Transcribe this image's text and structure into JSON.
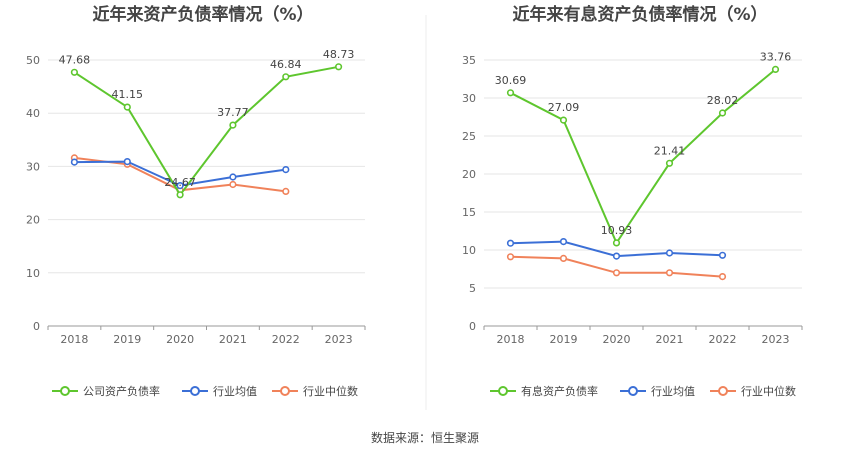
{
  "source": "数据来源：恒生聚源",
  "colors": {
    "primary": "#5ec62e",
    "avg": "#3b6fd6",
    "median": "#f0825a"
  },
  "chart_data": [
    {
      "type": "line",
      "title": "近年来资产负债率情况（%）",
      "categories": [
        "2018",
        "2019",
        "2020",
        "2021",
        "2022",
        "2023"
      ],
      "ylim": [
        0,
        50
      ],
      "yticks": [
        0,
        10,
        20,
        30,
        40,
        50
      ],
      "grid": true,
      "legend": "bottom",
      "series": [
        {
          "name": "公司资产负债率",
          "values": [
            47.68,
            41.15,
            24.67,
            37.77,
            46.84,
            48.73
          ],
          "labels": [
            "47.68",
            "41.15",
            "24.67",
            "37.77",
            "46.84",
            "48.73"
          ]
        },
        {
          "name": "行业均值",
          "values": [
            30.8,
            30.9,
            26.4,
            28.0,
            29.4,
            null
          ]
        },
        {
          "name": "行业中位数",
          "values": [
            31.6,
            30.4,
            25.5,
            26.6,
            25.3,
            null
          ]
        }
      ]
    },
    {
      "type": "line",
      "title": "近年来有息资产负债率情况（%）",
      "categories": [
        "2018",
        "2019",
        "2020",
        "2021",
        "2022",
        "2023"
      ],
      "ylim": [
        0,
        35
      ],
      "yticks": [
        0,
        5,
        10,
        15,
        20,
        25,
        30,
        35
      ],
      "grid": true,
      "legend": "bottom",
      "series": [
        {
          "name": "有息资产负债率",
          "values": [
            30.69,
            27.09,
            10.93,
            21.41,
            28.02,
            33.76
          ],
          "labels": [
            "30.69",
            "27.09",
            "10.93",
            "21.41",
            "28.02",
            "33.76"
          ]
        },
        {
          "name": "行业均值",
          "values": [
            10.9,
            11.1,
            9.2,
            9.6,
            9.3,
            null
          ]
        },
        {
          "name": "行业中位数",
          "values": [
            9.1,
            8.9,
            7.0,
            7.0,
            6.5,
            null
          ]
        }
      ]
    }
  ]
}
